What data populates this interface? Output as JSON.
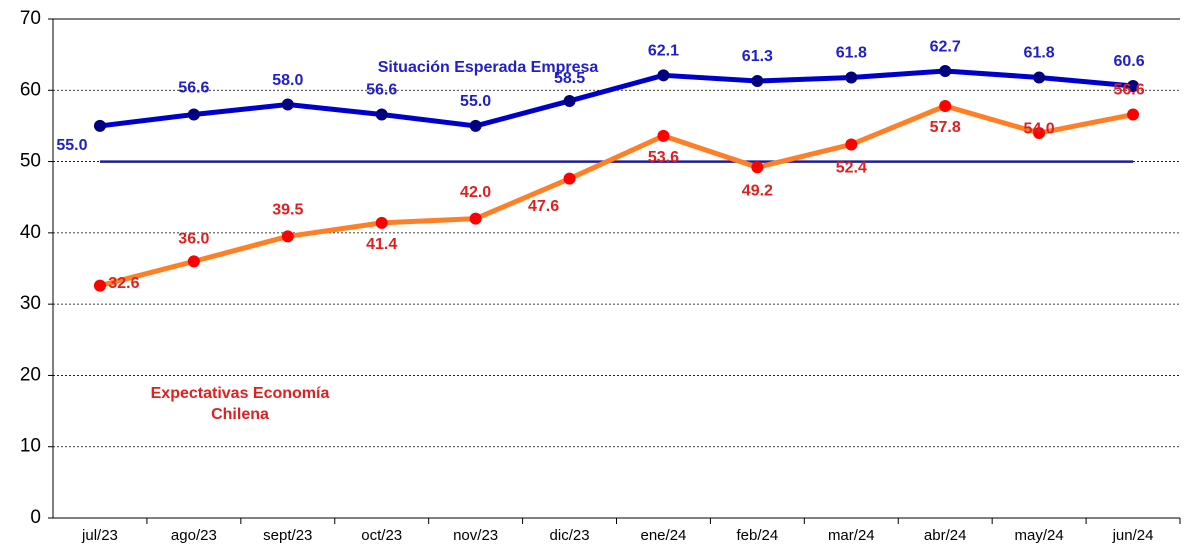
{
  "chart_data": {
    "type": "line",
    "categories": [
      "jul/23",
      "ago/23",
      "sept/23",
      "oct/23",
      "nov/23",
      "dic/23",
      "ene/24",
      "feb/24",
      "mar/24",
      "abr/24",
      "may/24",
      "jun/24"
    ],
    "series": [
      {
        "name": "Situación Esperada Empresa",
        "color": "#0000cc",
        "marker_color": "#000080",
        "label_color": "#1f1fcc",
        "values": [
          55.0,
          56.6,
          58.0,
          56.6,
          55.0,
          58.5,
          62.1,
          61.3,
          61.8,
          62.7,
          61.8,
          60.6
        ],
        "value_labels": [
          "55.0",
          "56.6",
          "58.0",
          "56.6",
          "55.0",
          "58.5",
          "62.1",
          "61.3",
          "61.8",
          "62.7",
          "61.8",
          "60.6"
        ]
      },
      {
        "name": "Expectativas Economía Chilena",
        "color": "#ff7f27",
        "marker_color": "#ff0000",
        "label_color": "#e02020",
        "values": [
          32.6,
          36.0,
          39.5,
          41.4,
          42.0,
          47.6,
          53.6,
          49.2,
          52.4,
          57.8,
          54.0,
          56.6
        ],
        "value_labels": [
          "32.6",
          "36.0",
          "39.5",
          "41.4",
          "42.0",
          "47.6",
          "53.6",
          "49.2",
          "52.4",
          "57.8",
          "54.0",
          "56.6"
        ]
      }
    ],
    "reference_line": {
      "value": 50,
      "color": "#1f1f99"
    },
    "ylim": [
      0,
      70
    ],
    "yticks": [
      0,
      10,
      20,
      30,
      40,
      50,
      60,
      70
    ],
    "grid": true
  }
}
